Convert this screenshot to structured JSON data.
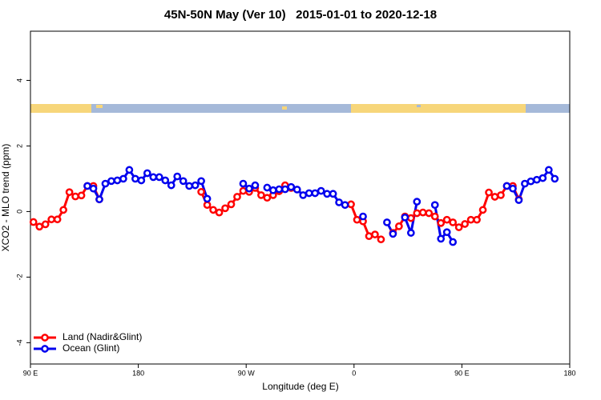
{
  "chart_data": {
    "type": "line",
    "title": "45N-50N May (Ver 10)   2015-01-01 to 2020-12-18",
    "x_label": "Longitude (deg E)",
    "y_label": "XCO2 - MLO trend (ppm)",
    "x": [
      92.5,
      97.5,
      102.5,
      107.5,
      112.5,
      117.5,
      122.5,
      127.5,
      132.5,
      137.5,
      142.5,
      147.5,
      152.5,
      157.5,
      162.5,
      167.5,
      172.5,
      177.5,
      182.5,
      187.5,
      192.5,
      197.5,
      202.5,
      207.5,
      212.5,
      217.5,
      222.5,
      227.5,
      232.5,
      237.5,
      242.5,
      247.5,
      252.5,
      257.5,
      262.5,
      267.5,
      272.5,
      277.5,
      282.5,
      287.5,
      292.5,
      297.5,
      302.5,
      307.5,
      312.5,
      317.5,
      322.5,
      327.5,
      332.5,
      337.5,
      342.5,
      347.5,
      352.5,
      357.5,
      362.5,
      367.5,
      372.5,
      377.5,
      382.5,
      387.5,
      392.5,
      397.5,
      402.5,
      407.5,
      412.5,
      417.5,
      422.5,
      427.5,
      432.5,
      437.5,
      442.5,
      447.5,
      452.5,
      457.5,
      462.5,
      467.5,
      472.5,
      477.5,
      482.5,
      487.5,
      492.5,
      497.5,
      502.5,
      507.5,
      512.5,
      517.5,
      522.5,
      527.5,
      532.5,
      537.5
    ],
    "series": [
      {
        "name": "Land (Nadir&Glint)",
        "color": "#ff0000",
        "values": [
          -0.32,
          -0.46,
          -0.39,
          -0.24,
          -0.24,
          0.05,
          0.59,
          0.46,
          0.49,
          0.78,
          0.78,
          0.37,
          null,
          null,
          null,
          null,
          null,
          null,
          null,
          null,
          null,
          null,
          null,
          null,
          null,
          null,
          null,
          null,
          0.6,
          0.2,
          0.05,
          -0.03,
          0.1,
          0.22,
          0.45,
          0.63,
          0.6,
          0.72,
          0.5,
          0.42,
          0.5,
          0.62,
          0.8,
          0.72,
          null,
          null,
          null,
          null,
          null,
          null,
          null,
          null,
          null,
          0.22,
          -0.25,
          -0.3,
          -0.75,
          -0.7,
          -0.85,
          null,
          -0.65,
          -0.45,
          -0.15,
          -0.2,
          -0.05,
          -0.03,
          -0.05,
          -0.15,
          -0.35,
          -0.25,
          -0.33,
          -0.48,
          -0.38,
          -0.25,
          -0.25,
          0.05,
          0.58,
          0.45,
          0.5,
          0.78,
          0.78,
          0.37,
          null,
          null,
          null,
          null,
          null,
          null,
          null,
          null
        ]
      },
      {
        "name": "Ocean (Glint)",
        "color": "#0000ee",
        "values": [
          null,
          null,
          null,
          null,
          null,
          null,
          null,
          null,
          null,
          0.78,
          0.7,
          0.37,
          0.85,
          0.93,
          0.95,
          1.0,
          1.27,
          1.0,
          0.95,
          1.17,
          1.05,
          1.05,
          0.95,
          0.8,
          1.07,
          0.93,
          0.78,
          0.8,
          0.93,
          0.39,
          null,
          null,
          null,
          null,
          null,
          0.85,
          0.7,
          0.8,
          null,
          0.73,
          0.65,
          0.68,
          0.68,
          0.75,
          0.67,
          0.5,
          0.56,
          0.56,
          0.63,
          0.54,
          0.54,
          0.28,
          0.2,
          null,
          null,
          -0.15,
          null,
          null,
          null,
          -0.33,
          -0.68,
          null,
          -0.18,
          -0.65,
          0.3,
          null,
          null,
          0.2,
          -0.83,
          -0.63,
          -0.93,
          null,
          null,
          null,
          null,
          null,
          null,
          null,
          null,
          0.78,
          0.7,
          0.35,
          0.85,
          0.92,
          0.97,
          1.02,
          1.27,
          1.0,
          null,
          null
        ]
      }
    ],
    "xlim": [
      90,
      540
    ],
    "xticks": [
      {
        "value": 90,
        "label": "90 E"
      },
      {
        "value": 180,
        "label": "180"
      },
      {
        "value": 270,
        "label": "90 W"
      },
      {
        "value": 360,
        "label": "0"
      },
      {
        "value": 450,
        "label": "90 E"
      },
      {
        "value": 540,
        "label": "180"
      }
    ],
    "ylim": [
      -4.65,
      5.5
    ],
    "yticks": [
      -4,
      -2,
      0,
      2,
      4
    ],
    "legend": "bottom-left"
  }
}
